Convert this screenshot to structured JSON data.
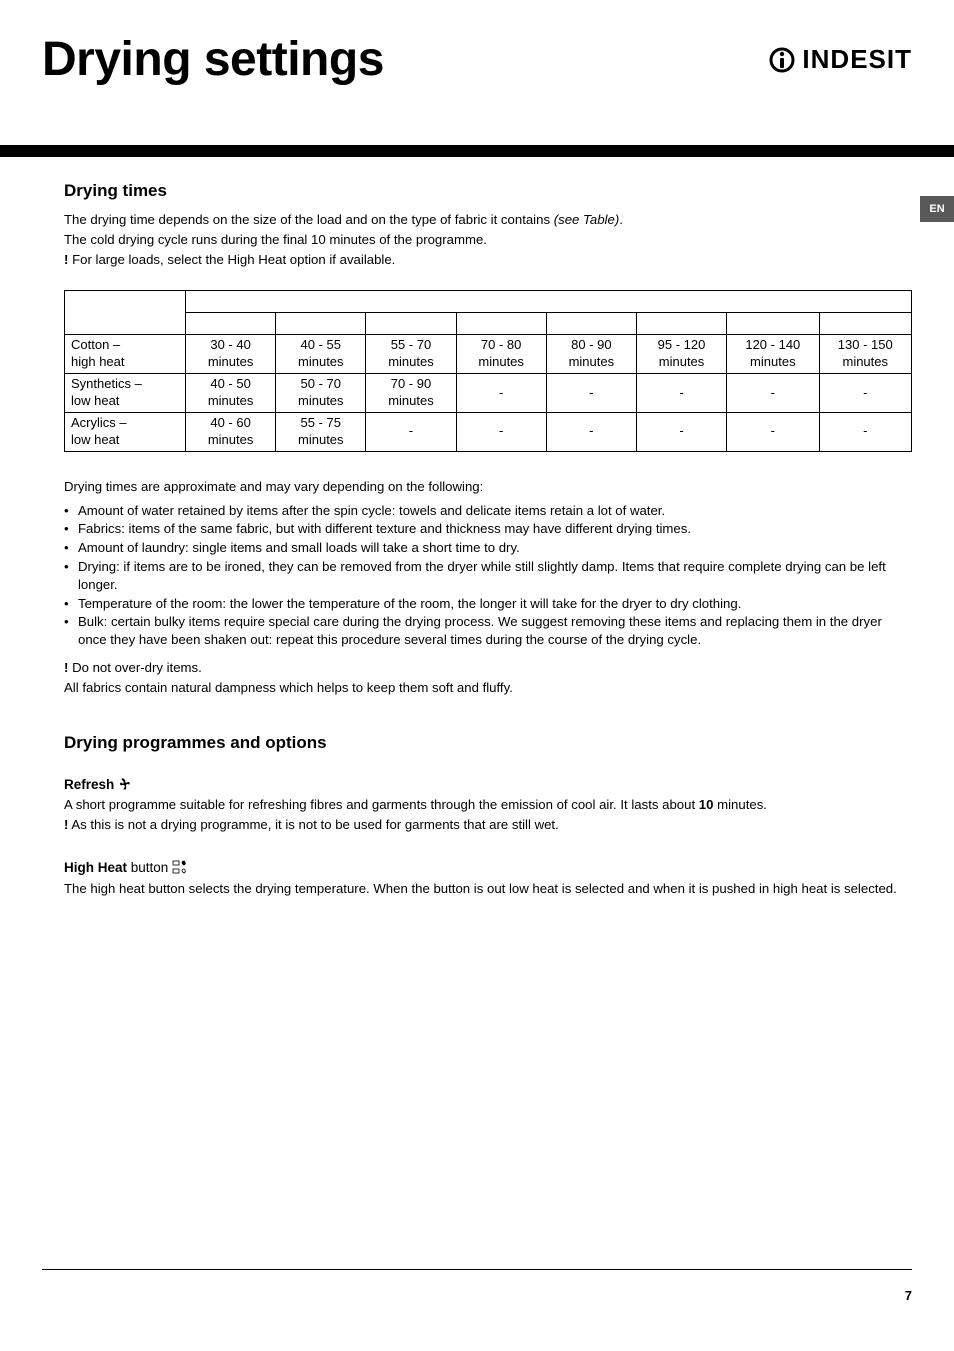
{
  "header": {
    "title": "Drying settings",
    "brand": "INDESIT"
  },
  "langTab": "EN",
  "section1": {
    "heading": "Drying times",
    "intro_line1_a": "The drying time depends on the size of the load and on the type of fabric it contains ",
    "intro_line1_b": "(see Table)",
    "intro_line1_c": ".",
    "intro_line2": "The cold drying cycle runs during the final 10 minutes of the programme.",
    "intro_line3": " For large loads, select the High Heat option if available.",
    "after_table_intro": "Drying times are approximate and may vary depending on the following:",
    "bullets": [
      "Amount of water retained by items after the spin cycle: towels and delicate items retain a lot of water.",
      "Fabrics: items of the same fabric, but with different texture and thickness may have different drying times.",
      "Amount of laundry: single items and small loads will take a short time to dry.",
      "Drying: if items are to be ironed, they can be removed from the dryer while still slightly damp. Items that require complete drying can be left longer.",
      "Temperature of the room: the lower the temperature of the room, the longer it will take for the dryer to dry clothing.",
      "Bulk: certain bulky items require special care during the drying process. We suggest removing these items and replacing them in the dryer once they have been shaken out: repeat this procedure several times during the course of the drying cycle."
    ],
    "warn_after": " Do not over-dry items.",
    "closing": "All fabrics contain natural dampness which helps to keep them soft and fluffy."
  },
  "table": {
    "rows": [
      {
        "label_a": "Cotton –",
        "label_b": "high heat",
        "cells": [
          "30 - 40 minutes",
          "40 - 55 minutes",
          "55 - 70 minutes",
          "70 - 80 minutes",
          "80 - 90 minutes",
          "95 - 120 minutes",
          "120 - 140 minutes",
          "130 - 150 minutes"
        ]
      },
      {
        "label_a": "Synthetics –",
        "label_b": "low heat",
        "cells": [
          "40 - 50 minutes",
          "50 - 70 minutes",
          "70 - 90 minutes",
          "-",
          "-",
          "-",
          "-",
          "-"
        ]
      },
      {
        "label_a": "Acrylics –",
        "label_b": "low heat",
        "cells": [
          "40 - 60 minutes",
          "55 - 75 minutes",
          "-",
          "-",
          "-",
          "-",
          "-",
          "-"
        ]
      }
    ]
  },
  "section2": {
    "heading": "Drying programmes and options",
    "refresh_label": "Refresh",
    "refresh_text_a": "A short programme suitable for refreshing fibres and garments through the emission of cool air. It lasts about ",
    "refresh_text_b": "10",
    "refresh_text_c": " minutes.",
    "refresh_warn": " As this is not a drying programme, it is not to be used for garments that are still wet.",
    "highheat_label_a": "High Heat",
    "highheat_label_b": " button",
    "highheat_text": "The high heat button selects the drying temperature.  When the button is out low heat is selected and when it is pushed in high heat is selected."
  },
  "pageNumber": "7"
}
